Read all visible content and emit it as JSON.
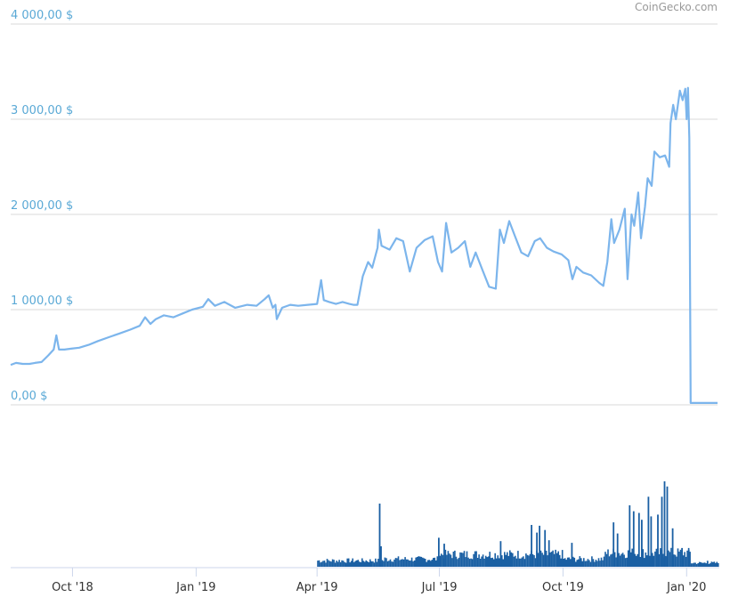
{
  "credit": "CoinGecko.com",
  "colors": {
    "price_line": "#7cb5ec",
    "volume_bar": "#1a5fa3",
    "grid": "#d8d8d8",
    "y_tick_text": "#5aa9d6",
    "x_tick_text": "#333333",
    "axis": "#ccd6eb"
  },
  "chart_data": {
    "type": "line",
    "title": "",
    "xlabel": "",
    "ylabel": "",
    "x_range": [
      "2018-08-16",
      "2020-01-24"
    ],
    "ylim": [
      0,
      4000
    ],
    "y_ticks": [
      {
        "value": 0,
        "label": "0,00 $"
      },
      {
        "value": 1000,
        "label": "1 000,00 $"
      },
      {
        "value": 2000,
        "label": "2 000,00 $"
      },
      {
        "value": 3000,
        "label": "3 000,00 $"
      },
      {
        "value": 4000,
        "label": "4 000,00 $"
      }
    ],
    "x_ticks": [
      {
        "date": "2018-10-01",
        "label": "Oct '18"
      },
      {
        "date": "2019-01-01",
        "label": "Jan '19"
      },
      {
        "date": "2019-04-01",
        "label": "Apr '19"
      },
      {
        "date": "2019-07-01",
        "label": "Jul '19"
      },
      {
        "date": "2019-10-01",
        "label": "Oct '19"
      },
      {
        "date": "2020-01-01",
        "label": "Jan '20"
      }
    ],
    "grid": true,
    "series": [
      {
        "kind": "price",
        "points": [
          [
            "2018-08-16",
            420
          ],
          [
            "2018-08-20",
            440
          ],
          [
            "2018-08-25",
            430
          ],
          [
            "2018-08-30",
            430
          ],
          [
            "2018-09-03",
            440
          ],
          [
            "2018-09-08",
            450
          ],
          [
            "2018-09-13",
            520
          ],
          [
            "2018-09-17",
            580
          ],
          [
            "2018-09-19",
            730
          ],
          [
            "2018-09-21",
            580
          ],
          [
            "2018-09-25",
            580
          ],
          [
            "2018-09-30",
            590
          ],
          [
            "2018-10-06",
            600
          ],
          [
            "2018-10-13",
            630
          ],
          [
            "2018-10-20",
            670
          ],
          [
            "2018-10-28",
            710
          ],
          [
            "2018-11-05",
            750
          ],
          [
            "2018-11-13",
            790
          ],
          [
            "2018-11-20",
            830
          ],
          [
            "2018-11-24",
            920
          ],
          [
            "2018-11-28",
            850
          ],
          [
            "2018-12-02",
            900
          ],
          [
            "2018-12-08",
            940
          ],
          [
            "2018-12-15",
            920
          ],
          [
            "2018-12-22",
            960
          ],
          [
            "2018-12-29",
            1000
          ],
          [
            "2019-01-06",
            1030
          ],
          [
            "2019-01-10",
            1110
          ],
          [
            "2019-01-15",
            1040
          ],
          [
            "2019-01-22",
            1080
          ],
          [
            "2019-01-30",
            1020
          ],
          [
            "2019-02-08",
            1050
          ],
          [
            "2019-02-15",
            1040
          ],
          [
            "2019-02-21",
            1110
          ],
          [
            "2019-02-24",
            1150
          ],
          [
            "2019-02-27",
            1020
          ],
          [
            "2019-03-01",
            1050
          ],
          [
            "2019-03-02",
            900
          ],
          [
            "2019-03-06",
            1020
          ],
          [
            "2019-03-12",
            1050
          ],
          [
            "2019-03-18",
            1040
          ],
          [
            "2019-03-25",
            1050
          ],
          [
            "2019-04-01",
            1060
          ],
          [
            "2019-04-04",
            1310
          ],
          [
            "2019-04-06",
            1100
          ],
          [
            "2019-04-10",
            1080
          ],
          [
            "2019-04-15",
            1060
          ],
          [
            "2019-04-20",
            1080
          ],
          [
            "2019-04-25",
            1060
          ],
          [
            "2019-04-28",
            1050
          ],
          [
            "2019-05-01",
            1050
          ],
          [
            "2019-05-05",
            1350
          ],
          [
            "2019-05-09",
            1500
          ],
          [
            "2019-05-12",
            1440
          ],
          [
            "2019-05-16",
            1650
          ],
          [
            "2019-05-17",
            1840
          ],
          [
            "2019-05-19",
            1670
          ],
          [
            "2019-05-25",
            1630
          ],
          [
            "2019-05-30",
            1750
          ],
          [
            "2019-06-04",
            1720
          ],
          [
            "2019-06-09",
            1400
          ],
          [
            "2019-06-14",
            1650
          ],
          [
            "2019-06-20",
            1730
          ],
          [
            "2019-06-26",
            1770
          ],
          [
            "2019-06-30",
            1500
          ],
          [
            "2019-07-03",
            1400
          ],
          [
            "2019-07-06",
            1910
          ],
          [
            "2019-07-10",
            1600
          ],
          [
            "2019-07-15",
            1650
          ],
          [
            "2019-07-20",
            1720
          ],
          [
            "2019-07-24",
            1450
          ],
          [
            "2019-07-28",
            1600
          ],
          [
            "2019-08-02",
            1420
          ],
          [
            "2019-08-07",
            1240
          ],
          [
            "2019-08-12",
            1220
          ],
          [
            "2019-08-15",
            1840
          ],
          [
            "2019-08-18",
            1700
          ],
          [
            "2019-08-22",
            1930
          ],
          [
            "2019-08-26",
            1780
          ],
          [
            "2019-08-31",
            1600
          ],
          [
            "2019-09-05",
            1560
          ],
          [
            "2019-09-10",
            1720
          ],
          [
            "2019-09-14",
            1750
          ],
          [
            "2019-09-19",
            1650
          ],
          [
            "2019-09-24",
            1610
          ],
          [
            "2019-09-30",
            1580
          ],
          [
            "2019-10-05",
            1520
          ],
          [
            "2019-10-08",
            1320
          ],
          [
            "2019-10-11",
            1450
          ],
          [
            "2019-10-16",
            1390
          ],
          [
            "2019-10-22",
            1360
          ],
          [
            "2019-10-28",
            1280
          ],
          [
            "2019-10-31",
            1250
          ],
          [
            "2019-11-03",
            1500
          ],
          [
            "2019-11-06",
            1950
          ],
          [
            "2019-11-08",
            1700
          ],
          [
            "2019-11-12",
            1840
          ],
          [
            "2019-11-16",
            2060
          ],
          [
            "2019-11-18",
            1320
          ],
          [
            "2019-11-21",
            2000
          ],
          [
            "2019-11-23",
            1880
          ],
          [
            "2019-11-26",
            2230
          ],
          [
            "2019-11-28",
            1750
          ],
          [
            "2019-12-01",
            2080
          ],
          [
            "2019-12-03",
            2380
          ],
          [
            "2019-12-06",
            2300
          ],
          [
            "2019-12-08",
            2660
          ],
          [
            "2019-12-12",
            2600
          ],
          [
            "2019-12-16",
            2620
          ],
          [
            "2019-12-19",
            2500
          ],
          [
            "2019-12-20",
            2960
          ],
          [
            "2019-12-22",
            3150
          ],
          [
            "2019-12-24",
            3000
          ],
          [
            "2019-12-27",
            3300
          ],
          [
            "2019-12-29",
            3200
          ],
          [
            "2019-12-31",
            3320
          ],
          [
            "2020-01-01",
            3000
          ],
          [
            "2020-01-02",
            3330
          ],
          [
            "2020-01-03",
            2800
          ],
          [
            "2020-01-04",
            20
          ],
          [
            "2020-01-24",
            20
          ]
        ]
      },
      {
        "kind": "volume",
        "values": [
          {
            "from": "2018-08-16",
            "to": "2019-03-31",
            "level": 0.0
          },
          {
            "from": "2019-04-01",
            "to": "2019-05-20",
            "level": 0.08
          },
          {
            "from": "2019-05-21",
            "to": "2019-06-30",
            "level": 0.1
          },
          {
            "from": "2019-07-01",
            "to": "2019-09-30",
            "level": 0.16
          },
          {
            "from": "2019-10-01",
            "to": "2019-10-31",
            "level": 0.1
          },
          {
            "from": "2019-11-01",
            "to": "2020-01-03",
            "level": 0.18
          },
          {
            "from": "2020-01-04",
            "to": "2020-01-24",
            "level": 0.05
          }
        ],
        "spikes": [
          [
            "2019-05-17",
            0.74
          ],
          [
            "2019-05-18",
            0.24
          ],
          [
            "2019-06-30",
            0.34
          ],
          [
            "2019-07-04",
            0.27
          ],
          [
            "2019-08-15",
            0.3
          ],
          [
            "2019-09-07",
            0.49
          ],
          [
            "2019-09-11",
            0.4
          ],
          [
            "2019-09-13",
            0.48
          ],
          [
            "2019-09-17",
            0.43
          ],
          [
            "2019-09-20",
            0.31
          ],
          [
            "2019-10-07",
            0.28
          ],
          [
            "2019-11-07",
            0.52
          ],
          [
            "2019-11-10",
            0.39
          ],
          [
            "2019-11-19",
            0.72
          ],
          [
            "2019-11-22",
            0.65
          ],
          [
            "2019-11-26",
            0.63
          ],
          [
            "2019-11-28",
            0.55
          ],
          [
            "2019-12-03",
            0.82
          ],
          [
            "2019-12-05",
            0.59
          ],
          [
            "2019-12-10",
            0.61
          ],
          [
            "2019-12-13",
            0.82
          ],
          [
            "2019-12-15",
            1.0
          ],
          [
            "2019-12-17",
            0.94
          ],
          [
            "2019-12-21",
            0.45
          ],
          [
            "2019-12-28",
            0.22
          ],
          [
            "2020-01-02",
            0.2
          ],
          [
            "2020-01-16",
            0.07
          ]
        ]
      }
    ]
  }
}
